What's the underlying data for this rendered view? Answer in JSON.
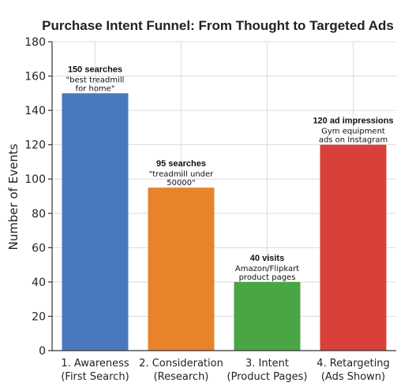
{
  "chart_data": {
    "type": "bar",
    "title": "Purchase Intent Funnel: From Thought to Targeted Ads",
    "xlabel": "",
    "ylabel": "Number of Events",
    "ylim": [
      0,
      180
    ],
    "yticks": [
      0,
      20,
      40,
      60,
      80,
      100,
      120,
      140,
      160,
      180
    ],
    "grid": true,
    "categories": [
      [
        "1. Awareness",
        "(First Search)"
      ],
      [
        "2. Consideration",
        "(Research)"
      ],
      [
        "3. Intent",
        "(Product Pages)"
      ],
      [
        "4. Retargeting",
        "(Ads Shown)"
      ]
    ],
    "values": [
      150,
      95,
      40,
      120
    ],
    "colors": [
      "#4a78bf",
      "#e8832c",
      "#4aa544",
      "#d9403a"
    ],
    "annotations": [
      {
        "head": "150 searches",
        "lines": [
          "\"best treadmill",
          "for home\""
        ]
      },
      {
        "head": "95 searches",
        "lines": [
          "\"treadmill under",
          "50000\""
        ]
      },
      {
        "head": "40 visits",
        "lines": [
          "Amazon/Flipkart",
          "product pages"
        ]
      },
      {
        "head": "120 ad impressions",
        "lines": [
          "Gym equipment",
          "ads on Instagram"
        ]
      }
    ]
  }
}
